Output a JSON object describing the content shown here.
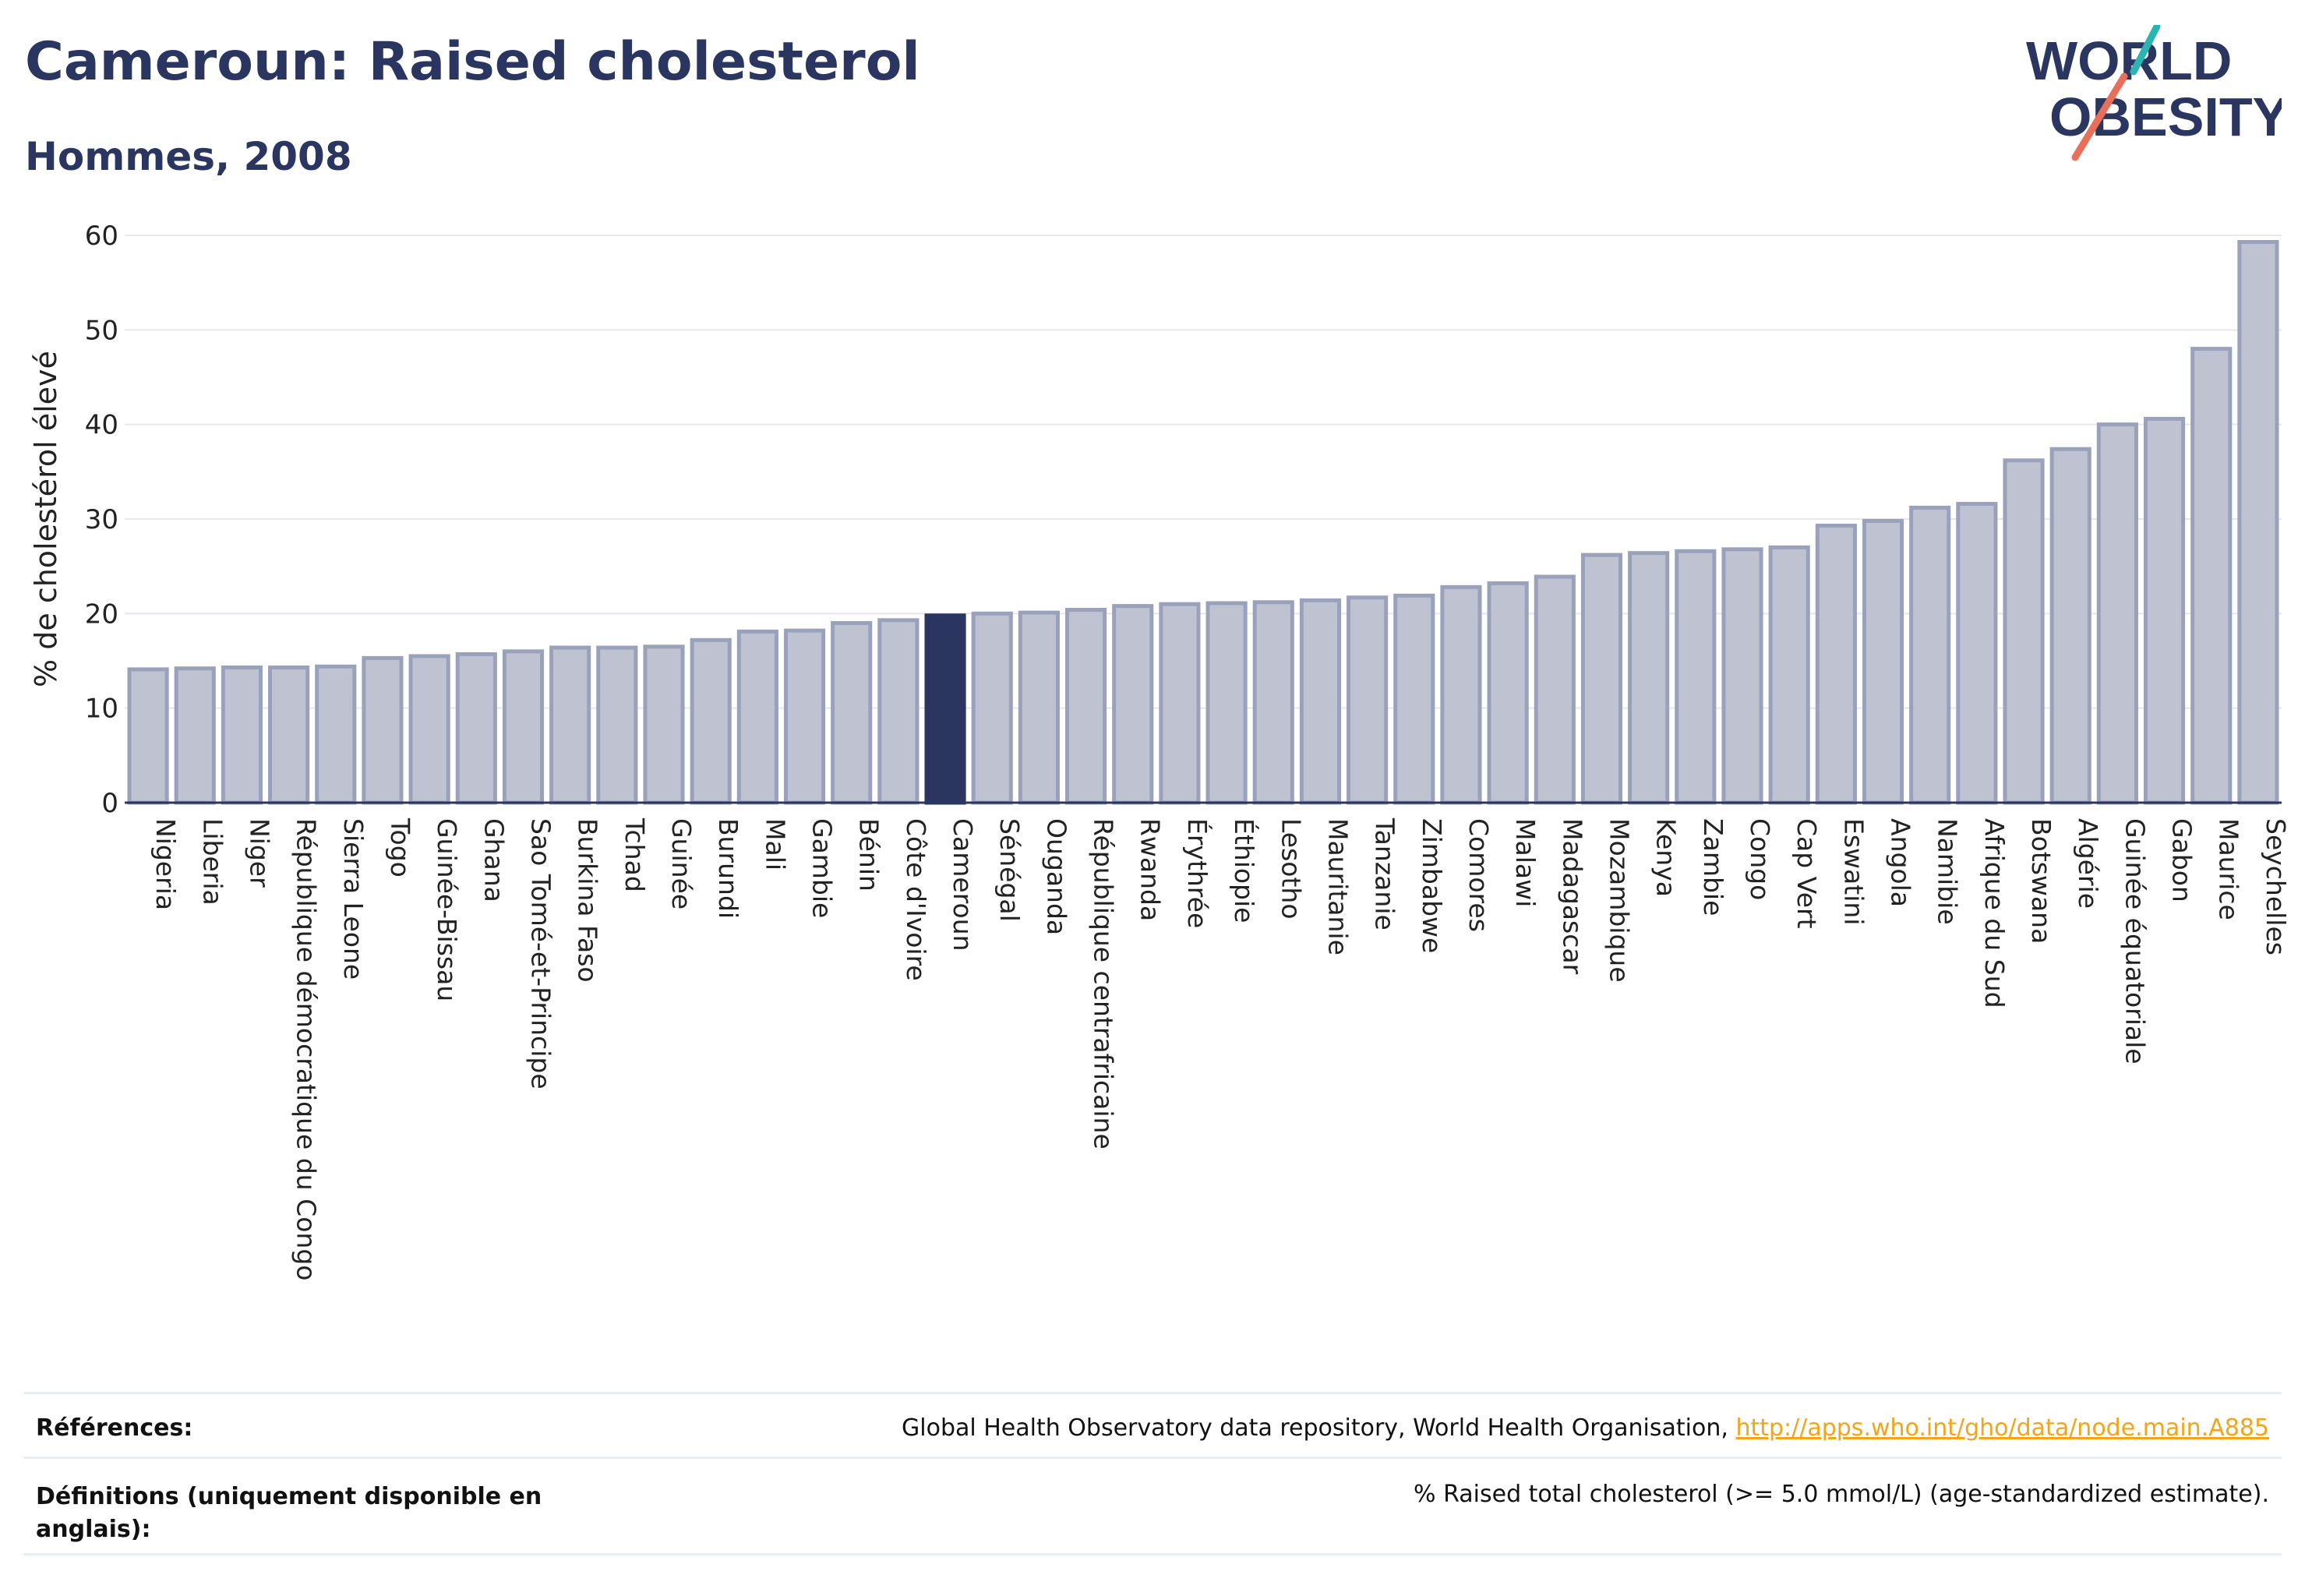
{
  "header": {
    "title": "Cameroun: Raised cholesterol",
    "subtitle": "Hommes, 2008"
  },
  "logo": {
    "line1": "WORLD",
    "line2": "OBESITY"
  },
  "colors": {
    "title": "#2a3560",
    "bar": "#bfc3d1",
    "bar_stroke": "#9aa1ba",
    "highlight": "#2a3560",
    "link": "#f2a51a",
    "logo_teal": "#2bb5b2",
    "logo_coral": "#e8705a"
  },
  "chart_data": {
    "type": "bar",
    "ylabel": "% de cholestérol élevé",
    "xlabel": "",
    "ylim": [
      0,
      60
    ],
    "yticks": [
      0,
      10,
      20,
      30,
      40,
      50,
      60
    ],
    "grid": true,
    "highlight": "Cameroun",
    "categories": [
      "Nigeria",
      "Liberia",
      "Niger",
      "République démocratique du Congo",
      "Sierra Leone",
      "Togo",
      "Guinée-Bissau",
      "Ghana",
      "Sao Tomé-et-Principe",
      "Burkina Faso",
      "Tchad",
      "Guinée",
      "Burundi",
      "Mali",
      "Gambie",
      "Bénin",
      "Côte d'Ivoire",
      "Cameroun",
      "Sénégal",
      "Ouganda",
      "République centrafricaine",
      "Rwanda",
      "Érythrée",
      "Éthiopie",
      "Lesotho",
      "Mauritanie",
      "Tanzanie",
      "Zimbabwe",
      "Comores",
      "Malawi",
      "Madagascar",
      "Mozambique",
      "Kenya",
      "Zambie",
      "Congo",
      "Cap Vert",
      "Eswatini",
      "Angola",
      "Namibie",
      "Afrique du Sud",
      "Botswana",
      "Algérie",
      "Guinée équatoriale",
      "Gabon",
      "Maurice",
      "Seychelles"
    ],
    "values": [
      14.1,
      14.2,
      14.3,
      14.3,
      14.4,
      15.3,
      15.5,
      15.7,
      16.0,
      16.4,
      16.4,
      16.5,
      17.2,
      18.1,
      18.2,
      19.0,
      19.3,
      19.8,
      20.0,
      20.1,
      20.4,
      20.8,
      21.0,
      21.1,
      21.2,
      21.4,
      21.7,
      21.9,
      22.8,
      23.2,
      23.9,
      26.2,
      26.4,
      26.6,
      26.8,
      27.0,
      29.3,
      29.8,
      31.2,
      31.6,
      36.2,
      37.4,
      40.0,
      40.6,
      48.0,
      59.3
    ]
  },
  "footer": {
    "references_label": "Références:",
    "references_text": "Global Health Observatory data repository, World Health Organisation, ",
    "references_link": "http://apps.who.int/gho/data/node.main.A885",
    "definitions_label": "Définitions (uniquement disponible en anglais):",
    "definitions_text": "% Raised total cholesterol (>= 5.0 mmol/L) (age-standardized estimate)."
  }
}
